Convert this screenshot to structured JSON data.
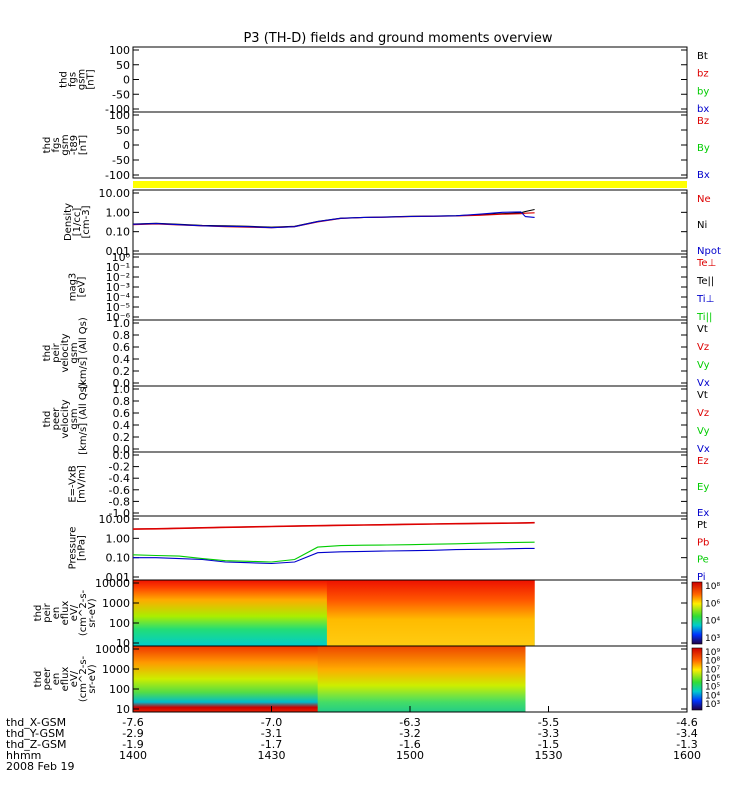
{
  "title": "P3 (TH-D) fields and ground moments overview",
  "colors": {
    "black": "#000000",
    "red": "#dd0000",
    "green": "#00cc00",
    "blue": "#0000cc",
    "yellow": "#ffff00",
    "darkred": "#990000"
  },
  "chart_data": [
    {
      "type": "line",
      "panel": "fgs-gsm",
      "ylabel": [
        "thd",
        "fgs",
        "gsm",
        "[nT]"
      ],
      "yticks": [
        "100",
        "50",
        "0",
        "-50",
        "-100"
      ],
      "ylim": [
        -100,
        100
      ],
      "legend": [
        {
          "name": "Bt",
          "color": "black"
        },
        {
          "name": "bz",
          "color": "red"
        },
        {
          "name": "by",
          "color": "green"
        },
        {
          "name": "bx",
          "color": "blue"
        }
      ],
      "series": []
    },
    {
      "type": "line",
      "panel": "fgs-gsm-t89",
      "ylabel": [
        "thd",
        "fgs",
        "gsm",
        "-t89",
        "[nT]"
      ],
      "yticks": [
        "100",
        "50",
        "0",
        "-50",
        "-100"
      ],
      "ylim": [
        -100,
        100
      ],
      "legend": [
        {
          "name": "Bz",
          "color": "red"
        },
        {
          "name": "By",
          "color": "green"
        },
        {
          "name": "Bx",
          "color": "blue"
        }
      ],
      "series": []
    },
    {
      "type": "line",
      "panel": "density",
      "ylabel": [
        "Density",
        "[1/cc]",
        "[cm-3]"
      ],
      "yticks": [
        "10.00",
        "1.00",
        "0.10",
        "0.01"
      ],
      "ylim": [
        0.01,
        10
      ],
      "yscale": "log",
      "legend": [
        {
          "name": "Ne",
          "color": "red"
        },
        {
          "name": "Ni",
          "color": "black"
        },
        {
          "name": "Npot",
          "color": "blue"
        }
      ],
      "x": [
        1400,
        1405,
        1410,
        1415,
        1420,
        1425,
        1430,
        1435,
        1440,
        1445,
        1450,
        1455,
        1500,
        1505,
        1510,
        1515,
        1520,
        1524,
        1525,
        1527
      ],
      "series": [
        {
          "name": "Ni",
          "color": "black",
          "values": [
            0.25,
            0.27,
            0.24,
            0.21,
            0.2,
            0.19,
            0.17,
            0.19,
            0.34,
            0.5,
            0.55,
            0.58,
            0.62,
            0.64,
            0.67,
            0.75,
            0.85,
            0.95,
            1.1,
            1.4
          ]
        },
        {
          "name": "Ne",
          "color": "red",
          "values": [
            0.23,
            0.25,
            0.22,
            0.2,
            0.18,
            0.17,
            0.16,
            0.18,
            0.32,
            0.48,
            0.54,
            0.56,
            0.6,
            0.62,
            0.65,
            0.7,
            0.8,
            0.85,
            0.9,
            0.95
          ]
        },
        {
          "name": "Npot",
          "color": "blue",
          "values": [
            0.24,
            0.26,
            0.23,
            0.2,
            0.19,
            0.18,
            0.16,
            0.18,
            0.33,
            0.49,
            0.55,
            0.57,
            0.61,
            0.63,
            0.66,
            0.8,
            1.0,
            1.05,
            0.6,
            0.55
          ]
        }
      ]
    },
    {
      "type": "line",
      "panel": "mag3",
      "ylabel": [
        "mag3",
        "[eV]"
      ],
      "yticks": [
        "10⁰",
        "10⁻¹",
        "10⁻²",
        "10⁻³",
        "10⁻⁴",
        "10⁻⁵",
        "10⁻⁶"
      ],
      "yscale": "log",
      "legend": [
        {
          "name": "Te⊥",
          "color": "red"
        },
        {
          "name": "Te||",
          "color": "black"
        },
        {
          "name": "Ti⊥",
          "color": "blue"
        },
        {
          "name": "Ti||",
          "color": "green"
        }
      ],
      "series": []
    },
    {
      "type": "line",
      "panel": "peir-velocity",
      "ylabel": [
        "thd",
        "peir",
        "velocity",
        "gsm",
        "[km/s] (All Qs)"
      ],
      "yticks": [
        "1.0",
        "0.8",
        "0.6",
        "0.4",
        "0.2",
        "0.0"
      ],
      "ylim": [
        0,
        1
      ],
      "legend": [
        {
          "name": "Vt",
          "color": "black"
        },
        {
          "name": "Vz",
          "color": "red"
        },
        {
          "name": "Vy",
          "color": "green"
        },
        {
          "name": "Vx",
          "color": "blue"
        }
      ],
      "series": []
    },
    {
      "type": "line",
      "panel": "peer-velocity",
      "ylabel": [
        "thd",
        "peer",
        "velocity",
        "gsm",
        "[km/s] (All Qs)"
      ],
      "yticks": [
        "1.0",
        "0.8",
        "0.6",
        "0.4",
        "0.2",
        "0.0"
      ],
      "ylim": [
        0,
        1
      ],
      "legend": [
        {
          "name": "Vt",
          "color": "black"
        },
        {
          "name": "Vz",
          "color": "red"
        },
        {
          "name": "Vy",
          "color": "green"
        },
        {
          "name": "Vx",
          "color": "blue"
        }
      ],
      "series": []
    },
    {
      "type": "line",
      "panel": "efield",
      "ylabel": [
        "E=-VxB",
        "[mV/m]"
      ],
      "yticks": [
        "0.0",
        "-0.2",
        "-0.4",
        "-0.6",
        "-0.8",
        "-1.0"
      ],
      "ylim": [
        -1,
        0
      ],
      "legend": [
        {
          "name": "Ez",
          "color": "red"
        },
        {
          "name": "Ey",
          "color": "green"
        },
        {
          "name": "Ex",
          "color": "blue"
        }
      ],
      "series": []
    },
    {
      "type": "line",
      "panel": "pressure",
      "ylabel": [
        "Pressure",
        "[nPa]"
      ],
      "yticks": [
        "10.00",
        "1.00",
        "0.10",
        "0.01"
      ],
      "ylim": [
        0.01,
        10
      ],
      "yscale": "log",
      "legend": [
        {
          "name": "Pt",
          "color": "black"
        },
        {
          "name": "Pb",
          "color": "red"
        },
        {
          "name": "Pe",
          "color": "green"
        },
        {
          "name": "Pi",
          "color": "blue"
        }
      ],
      "x": [
        1400,
        1405,
        1410,
        1415,
        1420,
        1425,
        1430,
        1435,
        1440,
        1445,
        1450,
        1455,
        1500,
        1505,
        1510,
        1515,
        1520,
        1525,
        1527
      ],
      "series": [
        {
          "name": "Pt",
          "color": "black",
          "values": [
            3.0,
            3.1,
            3.3,
            3.5,
            3.7,
            3.9,
            4.1,
            4.3,
            4.5,
            4.7,
            4.9,
            5.1,
            5.3,
            5.5,
            5.7,
            5.9,
            6.1,
            6.3,
            6.4
          ]
        },
        {
          "name": "Pb",
          "color": "red",
          "values": [
            3.0,
            3.1,
            3.3,
            3.5,
            3.7,
            3.9,
            4.1,
            4.3,
            4.5,
            4.7,
            4.9,
            5.1,
            5.3,
            5.5,
            5.7,
            5.9,
            6.1,
            6.3,
            6.4
          ]
        },
        {
          "name": "Pe",
          "color": "green",
          "values": [
            0.14,
            0.13,
            0.12,
            0.09,
            0.07,
            0.065,
            0.06,
            0.08,
            0.35,
            0.42,
            0.44,
            0.45,
            0.47,
            0.5,
            0.52,
            0.56,
            0.6,
            0.62,
            0.63
          ]
        },
        {
          "name": "Pi",
          "color": "blue",
          "values": [
            0.1,
            0.1,
            0.09,
            0.08,
            0.06,
            0.055,
            0.05,
            0.06,
            0.18,
            0.2,
            0.21,
            0.22,
            0.23,
            0.24,
            0.26,
            0.27,
            0.28,
            0.3,
            0.3
          ]
        }
      ]
    },
    {
      "type": "heatmap",
      "panel": "peir-eflux",
      "ylabel": [
        "thd",
        "peir",
        "en",
        "eflux",
        "eV/",
        "(cm^2-s-",
        "sr-eV)"
      ],
      "yticks": [
        "10000",
        "1000",
        "100",
        "10"
      ],
      "yscale": "log",
      "colorbar_ticks": [
        "10⁸",
        "10⁶",
        "10⁴",
        "10³"
      ],
      "x_end": 1527
    },
    {
      "type": "heatmap",
      "panel": "peer-eflux",
      "ylabel": [
        "thd",
        "peer",
        "en",
        "eflux",
        "eV/",
        "(cm^2-s-",
        "sr-eV)"
      ],
      "yticks": [
        "10000",
        "1000",
        "100",
        "10"
      ],
      "yscale": "log",
      "colorbar_ticks": [
        "10⁹",
        "10⁸",
        "10⁷",
        "10⁶",
        "10⁵",
        "10⁴",
        "10³"
      ],
      "x_end": 1525
    }
  ],
  "x_axis": {
    "ticks": [
      "1400",
      "1430",
      "1500",
      "1530",
      "1600"
    ],
    "range": [
      1400,
      1600
    ],
    "rows": [
      {
        "label": "thd_X-GSM",
        "values": [
          "-7.6",
          "-7.0",
          "-6.3",
          "-5.5",
          "-4.6"
        ]
      },
      {
        "label": "thd_Y-GSM",
        "values": [
          "-2.9",
          "-3.1",
          "-3.2",
          "-3.3",
          "-3.4"
        ]
      },
      {
        "label": "thd_Z-GSM",
        "values": [
          "-1.9",
          "-1.7",
          "-1.6",
          "-1.5",
          "-1.3"
        ]
      },
      {
        "label": "hhmm",
        "values": [
          "1400",
          "1430",
          "1500",
          "1530",
          "1600"
        ]
      }
    ],
    "date": "2008 Feb 19"
  }
}
